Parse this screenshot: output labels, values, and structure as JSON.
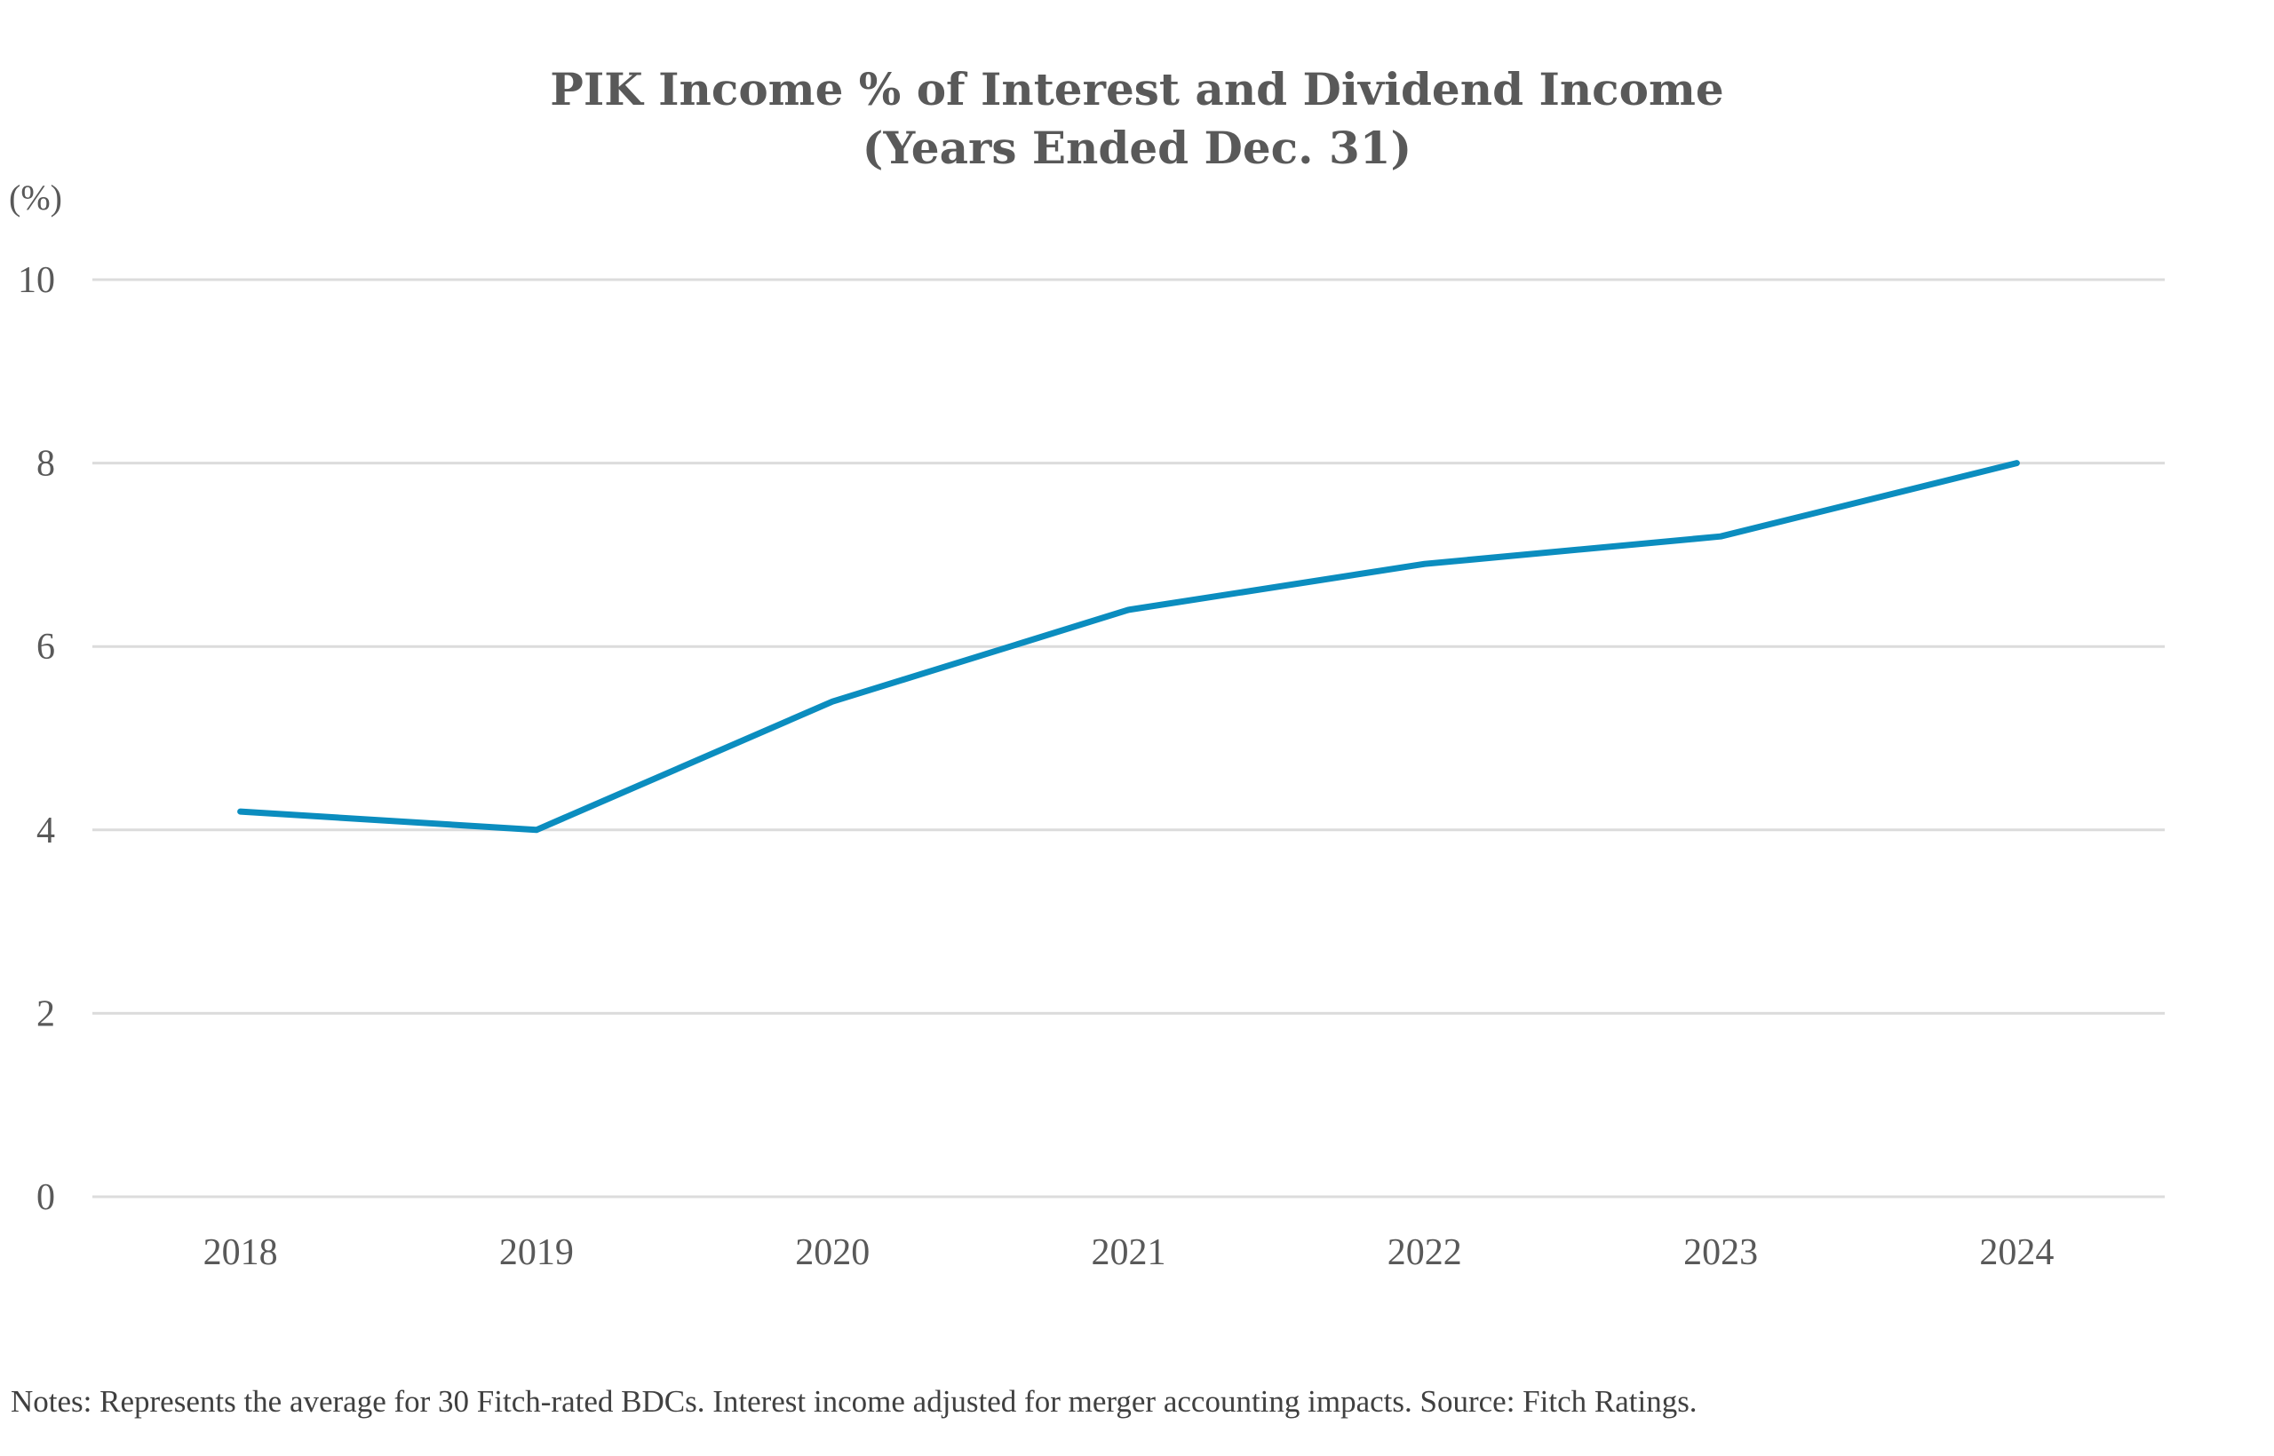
{
  "chart_data": {
    "type": "line",
    "title": "PIK Income % of Interest and Dividend Income",
    "subtitle": "(Years Ended Dec. 31)",
    "ylabel": "(%)",
    "xlabel": "",
    "categories": [
      "2018",
      "2019",
      "2020",
      "2021",
      "2022",
      "2023",
      "2024"
    ],
    "series": [
      {
        "name": "PIK Income % of Interest and Dividend Income",
        "values": [
          4.2,
          4.0,
          5.4,
          6.4,
          6.9,
          7.2,
          8.0
        ],
        "color": "#0b8dbf"
      }
    ],
    "ylim": [
      0,
      10
    ],
    "yticks": [
      "0",
      "2",
      "4",
      "6",
      "8",
      "10"
    ],
    "ytick_values": [
      0,
      2,
      4,
      6,
      8,
      10
    ],
    "grid": true,
    "legend": "none",
    "notes": "Notes: Represents the average for 30 Fitch-rated BDCs. Interest income adjusted for merger accounting impacts. Source: Fitch Ratings."
  }
}
